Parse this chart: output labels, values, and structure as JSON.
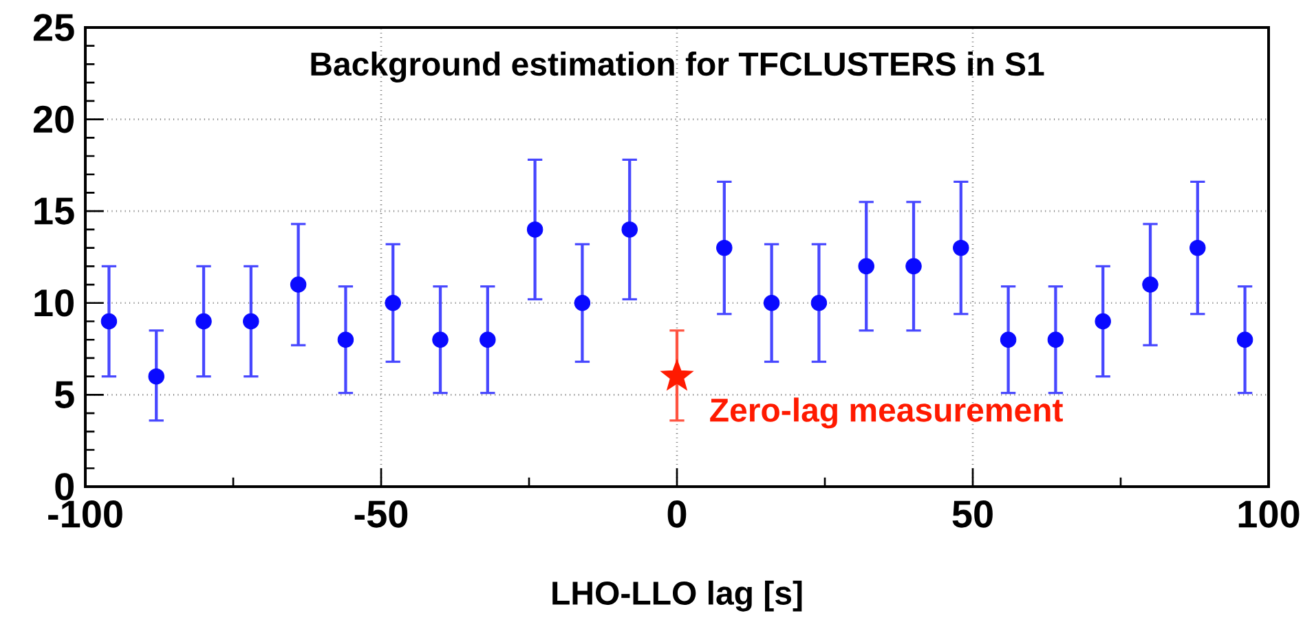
{
  "chart_data": {
    "type": "scatter",
    "title": "Background estimation for TFCLUSTERS in S1",
    "xlabel": "LHO-LLO lag [s]",
    "xlim": [
      -100,
      100
    ],
    "ylim": [
      0,
      25
    ],
    "xticks": [
      -100,
      -50,
      0,
      50,
      100
    ],
    "yticks": [
      0,
      5,
      10,
      15,
      20,
      25
    ],
    "grid": true,
    "series": [
      {
        "color": "#0a0aff",
        "marker": "circle",
        "x": [
          -96,
          -88,
          -80,
          -72,
          -64,
          -56,
          -48,
          -40,
          -32,
          -24,
          -16,
          -8,
          8,
          16,
          24,
          32,
          40,
          48,
          56,
          64,
          72,
          80,
          88,
          96
        ],
        "values": [
          9,
          6,
          9,
          9,
          11,
          8,
          10,
          8,
          8,
          14,
          10,
          14,
          13,
          10,
          10,
          12,
          12,
          13,
          8,
          8,
          9,
          11,
          13,
          8
        ],
        "errors": [
          [
            6,
            12
          ],
          [
            3.6,
            8.5
          ],
          [
            6,
            12
          ],
          [
            6,
            12
          ],
          [
            7.7,
            14.3
          ],
          [
            5.1,
            10.9
          ],
          [
            6.8,
            13.2
          ],
          [
            5.1,
            10.9
          ],
          [
            5.1,
            10.9
          ],
          [
            10.2,
            17.8
          ],
          [
            6.8,
            13.2
          ],
          [
            10.2,
            17.8
          ],
          [
            9.4,
            16.6
          ],
          [
            6.8,
            13.2
          ],
          [
            6.8,
            13.2
          ],
          [
            8.5,
            15.5
          ],
          [
            8.5,
            15.5
          ],
          [
            9.4,
            16.6
          ],
          [
            5.1,
            10.9
          ],
          [
            5.1,
            10.9
          ],
          [
            6,
            12
          ],
          [
            7.7,
            14.3
          ],
          [
            9.4,
            16.6
          ],
          [
            5.1,
            10.9
          ]
        ]
      },
      {
        "color": "#ff1a00",
        "marker": "star",
        "x": [
          0
        ],
        "values": [
          6
        ],
        "errors": [
          [
            3.6,
            8.5
          ]
        ]
      }
    ],
    "annotations": [
      {
        "text": "Zero-lag measurement",
        "x": 0,
        "y": 6
      }
    ]
  }
}
